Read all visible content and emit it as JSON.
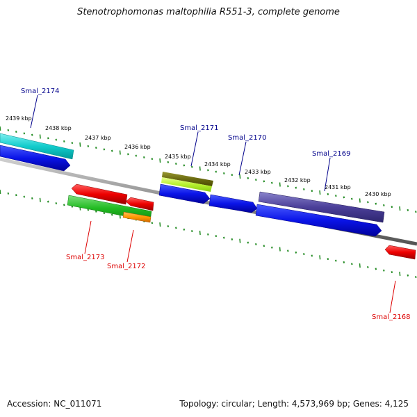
{
  "title": "Stenotrophomonas maltophilia R551-3, complete genome",
  "footer": {
    "accession": "Accession: NC_011071",
    "summary": "Topology: circular; Length: 4,573,969 bp; Genes: 4,125"
  },
  "colors": {
    "forward_label": "#00008b",
    "reverse_label": "#dd0000",
    "backbone": "#8a8a8a",
    "ticks": "#228b22"
  },
  "ticks": [
    "2439 kbp",
    "2438 kbp",
    "2437 kbp",
    "2436 kbp",
    "2435 kbp",
    "2434 kbp",
    "2433 kbp",
    "2432 kbp",
    "2431 kbp",
    "2430 kbp"
  ],
  "gene_labels": {
    "forward": [
      "Smal_2174",
      "Smal_2171",
      "Smal_2170",
      "Smal_2169"
    ],
    "reverse": [
      "Smal_2173",
      "Smal_2172",
      "Smal_2168"
    ]
  }
}
